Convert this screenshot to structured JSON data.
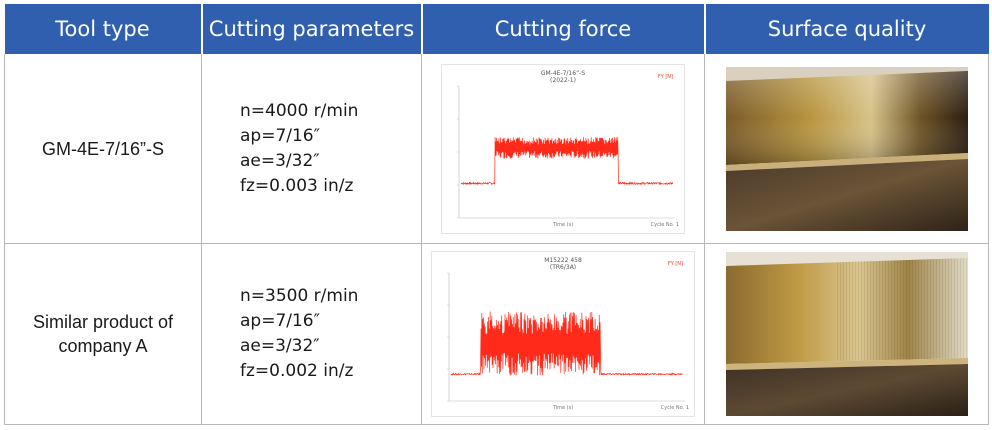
{
  "header": {
    "col1": "Tool type",
    "col2": "Cutting parameters",
    "col3": "Cutting force",
    "col4": "Surface quality"
  },
  "rows": [
    {
      "tool": "GM-4E-7/16”-S",
      "params": [
        "n=4000 r/min",
        "ap=7/16″",
        "ae=3/32″",
        "fz=0.003 in/z"
      ],
      "chart_title": "GM-4E-7/16”-S",
      "chart_subtitle": "(2022-1)",
      "chart_tag": "FY [N]",
      "chart_xlabel": "Time (s)",
      "chart_footer": "Cycle No. 1"
    },
    {
      "tool": "Similar product of company A",
      "params": [
        "n=3500 r/min",
        "ap=7/16″",
        "ae=3/32″",
        "fz=0.002 in/z"
      ],
      "chart_title": "M15222 458",
      "chart_subtitle": "(TR6/3A)",
      "chart_tag": "FY [N]",
      "chart_xlabel": "Time (s)",
      "chart_footer": "Cycle No. 1"
    }
  ],
  "chart_data": [
    {
      "type": "line",
      "title": "GM-4E-7/16”-S",
      "series": [
        {
          "values_band": {
            "start": 0.35,
            "end": 1.55,
            "low": 160,
            "high": 290,
            "baseline": 10
          }
        }
      ],
      "ylim": [
        -200,
        600
      ],
      "xlim": [
        0,
        2.1
      ],
      "color": "#ff2a1a"
    },
    {
      "type": "line",
      "title": "M15222 458",
      "series": [
        {
          "values_band": {
            "start": 0.28,
            "end": 1.35,
            "low": 0,
            "high": 500,
            "baseline": 10
          }
        }
      ],
      "ylim": [
        -200,
        800
      ],
      "xlim": [
        0,
        2.1
      ],
      "color": "#ff2a1a"
    }
  ],
  "colors": {
    "header_bg": "#2f5fae",
    "signal": "#ff2a1a"
  }
}
